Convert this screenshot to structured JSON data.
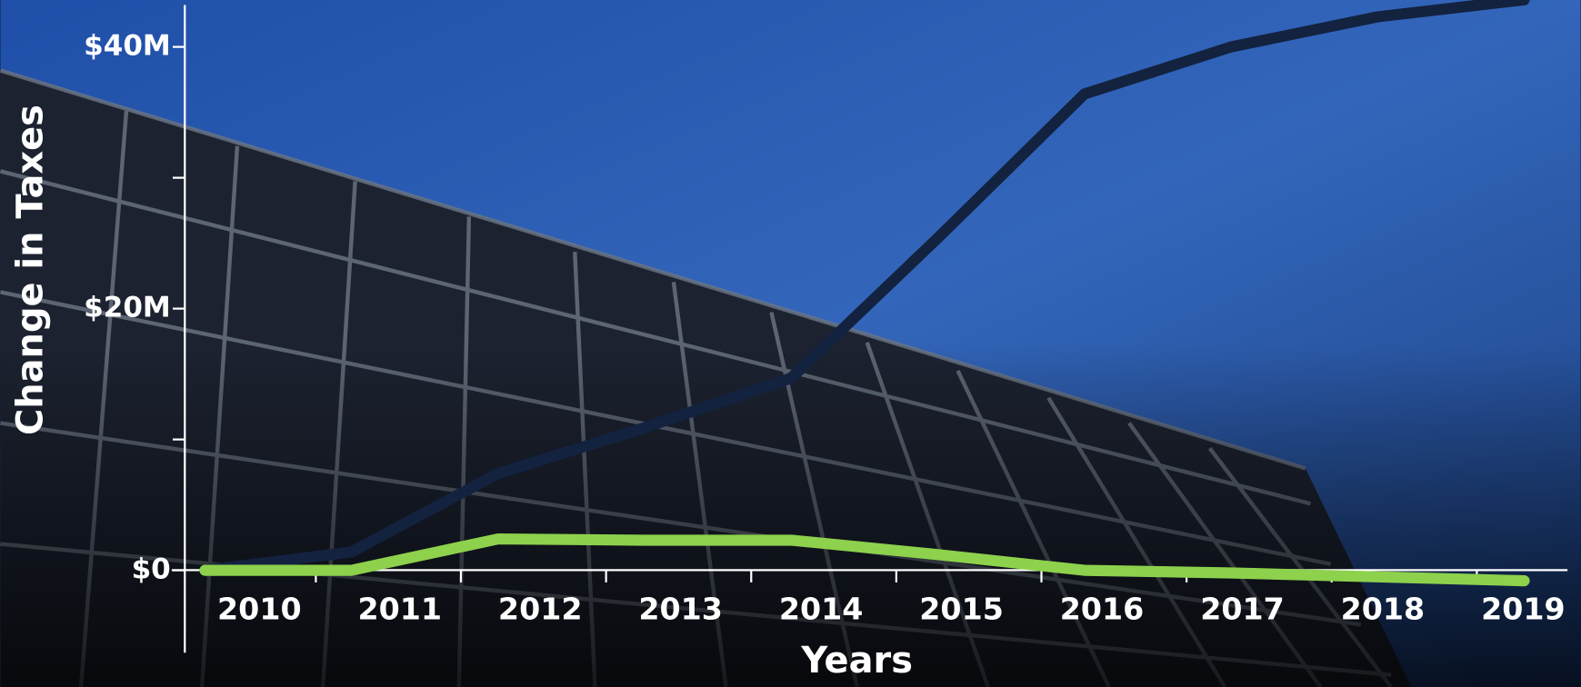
{
  "chart_data": {
    "type": "line",
    "x_label": "Years",
    "y_label": "Change in Taxes",
    "categories": [
      "2010",
      "2011",
      "2012",
      "2013",
      "2014",
      "2015",
      "2016",
      "2017",
      "2018",
      "2019"
    ],
    "series": [
      {
        "color": "#13223f",
        "values": [
          0,
          1400000,
          7400000,
          10900000,
          14700000,
          25400000,
          36400000,
          40000000,
          42300000,
          43600000
        ]
      },
      {
        "color": "#8dd14c",
        "values": [
          0,
          0,
          2400000,
          2300000,
          2300000,
          1200000,
          0,
          -200000,
          -500000,
          -800000
        ]
      }
    ],
    "ylim": [
      -6300000,
      43200000
    ],
    "yticks": [
      {
        "value": 0,
        "label": "$0"
      },
      {
        "value": 20000000,
        "label": "$20M"
      },
      {
        "value": 40000000,
        "label": "$40M"
      }
    ],
    "yminor_ticks": [
      10000000,
      30000000
    ]
  }
}
